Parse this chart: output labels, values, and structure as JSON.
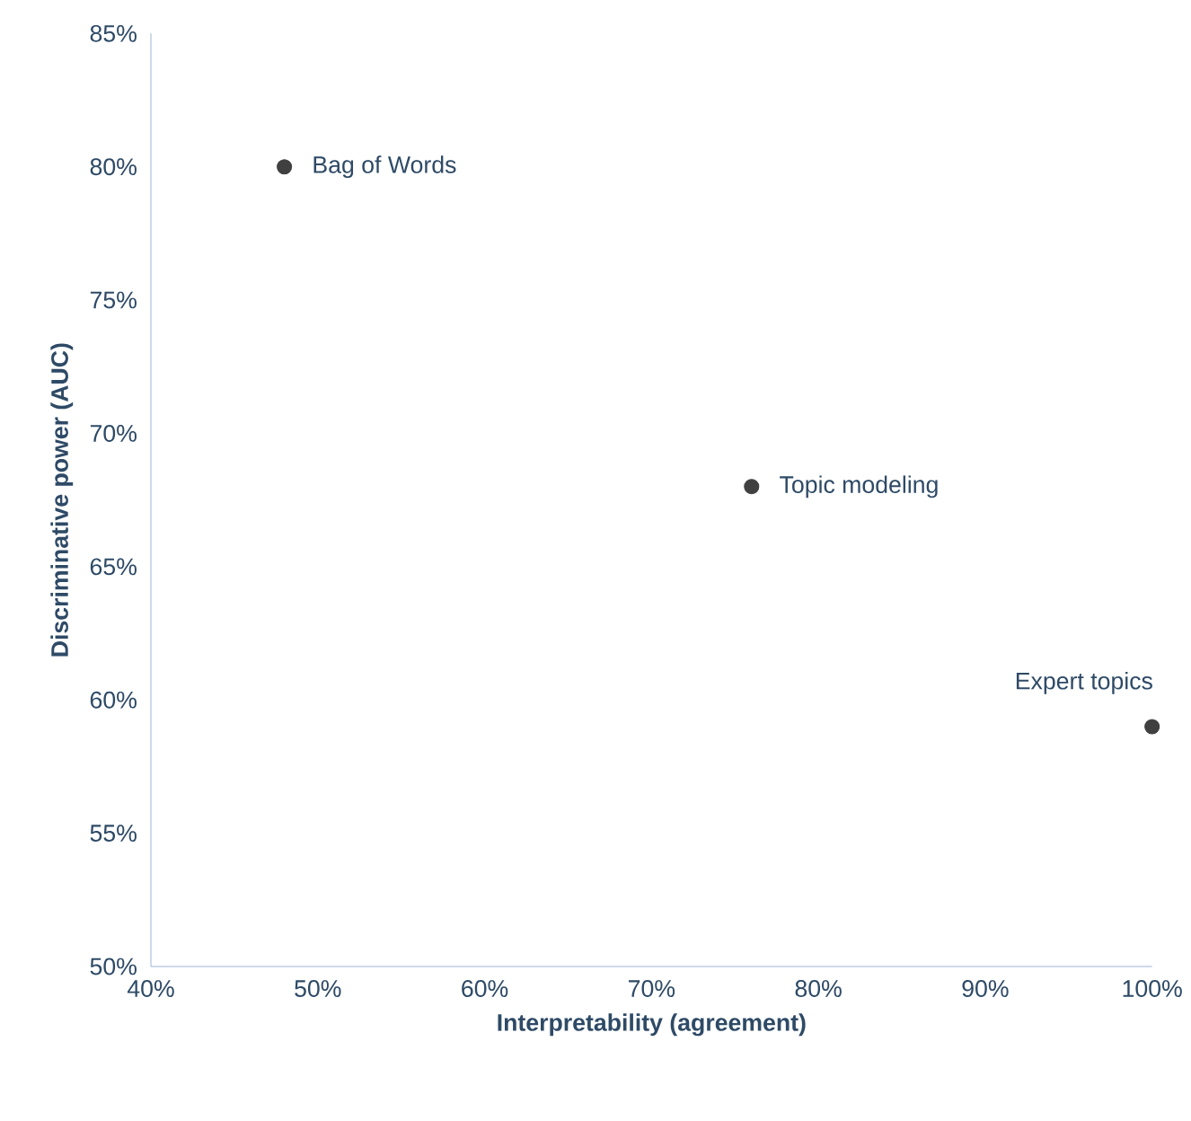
{
  "chart_data": {
    "type": "scatter",
    "xlabel": "Interpretability (agreement)",
    "ylabel": "Discriminative power (AUC)",
    "x": [
      48,
      76,
      100
    ],
    "values": [
      80,
      68,
      59
    ],
    "color": "#404040",
    "marker": "circle",
    "xlim": [
      40,
      100
    ],
    "ylim": [
      50,
      85
    ],
    "xticks": [
      {
        "value": 40,
        "label": "40%"
      },
      {
        "value": 50,
        "label": "50%"
      },
      {
        "value": 60,
        "label": "60%"
      },
      {
        "value": 70,
        "label": "70%"
      },
      {
        "value": 80,
        "label": "80%"
      },
      {
        "value": 90,
        "label": "90%"
      },
      {
        "value": 100,
        "label": "100%"
      }
    ],
    "yticks": [
      {
        "value": 50,
        "label": "50%"
      },
      {
        "value": 55,
        "label": "55%"
      },
      {
        "value": 60,
        "label": "60%"
      },
      {
        "value": 65,
        "label": "65%"
      },
      {
        "value": 70,
        "label": "70%"
      },
      {
        "value": 75,
        "label": "75%"
      },
      {
        "value": 80,
        "label": "80%"
      },
      {
        "value": 85,
        "label": "85%"
      }
    ],
    "annotations": [
      {
        "text": "Bag of Words",
        "x": 48,
        "y": 80
      },
      {
        "text": "Topic modeling",
        "x": 76,
        "y": 68
      },
      {
        "text": "Expert topics",
        "x": 100,
        "y": 59
      }
    ],
    "grid": false
  }
}
